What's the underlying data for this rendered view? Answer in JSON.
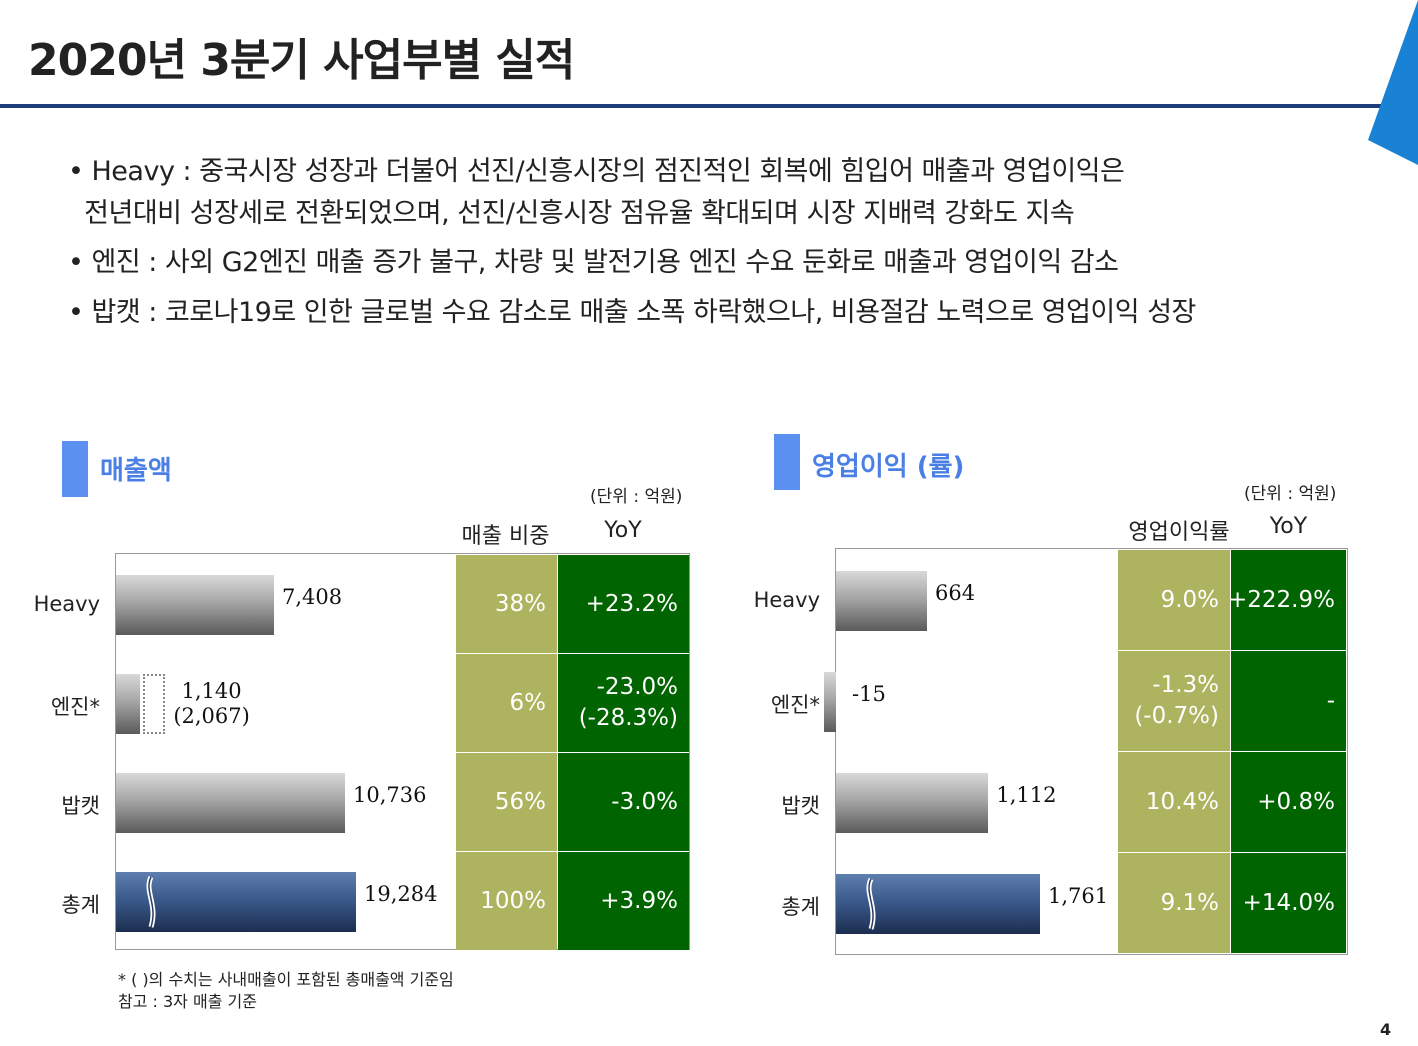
{
  "page": {
    "title": "2020년 3분기 사업부별 실적",
    "page_number": "4",
    "accent_color": "#1f3c7a",
    "corner_color": "#1a82d4"
  },
  "bullets": [
    "• Heavy : 중국시장 성장과 더불어 선진/신흥시장의 점진적인 회복에 힘입어 매출과 영업이익은",
    "  전년대비 성장세로 전환되었으며, 선진/신흥시장 점유율 확대되며 시장 지배력 강화도 지속",
    "• 엔진 : 사외 G2엔진 매출 증가 불구, 차량 및 발전기용 엔진 수요 둔화로 매출과 영업이익 감소",
    "• 밥캣 : 코로나19로 인한 글로벌 수요 감소로 매출 소폭 하락했으나, 비용절감 노력으로 영업이익 성장"
  ],
  "chart_data": [
    {
      "type": "bar",
      "orientation": "horizontal",
      "title": "매출액",
      "unit": "(단위 : 억원)",
      "col_headers": [
        "매출 비중",
        "YoY"
      ],
      "categories": [
        "Heavy",
        "엔진*",
        "밥캣",
        "총계"
      ],
      "values": [
        7408,
        1140,
        10736,
        19284
      ],
      "value_labels": [
        "7,408",
        "1,140",
        "10,736",
        "19,284"
      ],
      "secondary_values": [
        null,
        2067,
        null,
        null
      ],
      "secondary_labels": [
        null,
        "(2,067)",
        null,
        null
      ],
      "axis_break_on": "총계",
      "share": [
        "38%",
        "6%",
        "56%",
        "100%"
      ],
      "yoy": [
        [
          "+23.2%"
        ],
        [
          "-23.0%",
          "(-28.3%)"
        ],
        [
          "-3.0%"
        ],
        [
          "+3.9%"
        ]
      ],
      "share_color": "#adb35e",
      "yoy_color": "#006400"
    },
    {
      "type": "bar",
      "orientation": "horizontal",
      "title": "영업이익 (률)",
      "unit": "(단위 : 억원)",
      "col_headers": [
        "영업이익률",
        "YoY"
      ],
      "categories": [
        "Heavy",
        "엔진*",
        "밥캣",
        "총계"
      ],
      "values": [
        664,
        -15,
        1112,
        1761
      ],
      "value_labels": [
        "664",
        "-15",
        "1,112",
        "1,761"
      ],
      "axis_break_on": "총계",
      "share": [
        [
          "9.0%"
        ],
        [
          "-1.3%",
          "(-0.7%)"
        ],
        [
          "10.4%"
        ],
        [
          "9.1%"
        ]
      ],
      "yoy": [
        [
          "+222.9%"
        ],
        [
          "-"
        ],
        [
          "+0.8%"
        ],
        [
          "+14.0%"
        ]
      ],
      "share_color": "#adb35e",
      "yoy_color": "#006400"
    }
  ],
  "footnotes": [
    "* ( )의 수치는 사내매출이 포함된 총매출액 기준임",
    "참고 : 3자 매출 기준"
  ]
}
